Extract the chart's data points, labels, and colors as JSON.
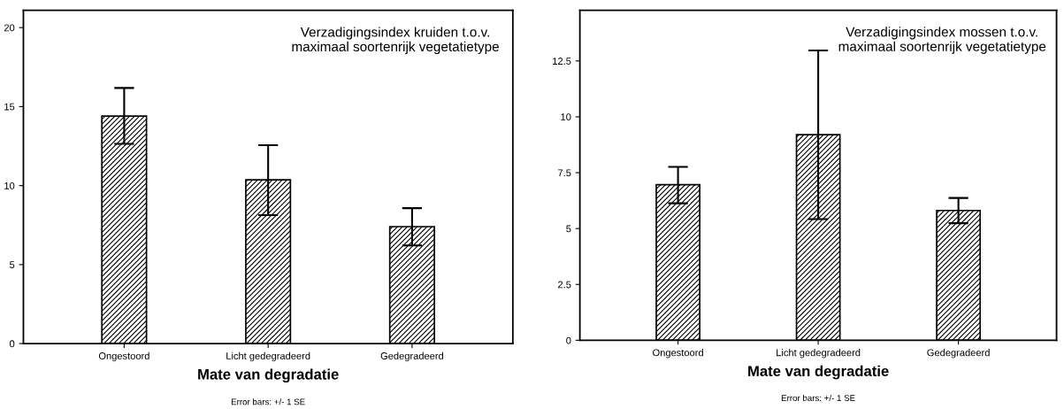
{
  "chart_data": [
    {
      "type": "bar",
      "title": "Verzadigingsindex kruiden t.o.v.\nmaximaal soortenrijk vegetatietype",
      "xlabel": "Mate van degradatie",
      "annotations": [
        "Error bars: +/- 1 SE"
      ],
      "categories": [
        "Ongestoord",
        "Licht gedegradeerd",
        "Gedegradeerd"
      ],
      "values": [
        14.4,
        10.36,
        7.4
      ],
      "color": "#000000",
      "errors": [
        [
          12.64,
          16.18
        ],
        [
          8.13,
          12.56
        ],
        [
          6.21,
          8.57
        ]
      ],
      "ylim": [
        0,
        21.1
      ],
      "yticks": [
        0,
        5,
        10,
        15,
        20
      ]
    },
    {
      "type": "bar",
      "title": "Verzadigingsindex mossen t.o.v.\nmaximaal soortenrijk vegetatietype",
      "xlabel": "Mate van degradatie",
      "annotations": [
        "Error bars: +/- 1 SE"
      ],
      "categories": [
        "Ongestoord",
        "Licht gedegradeerd",
        "Gedegradeerd"
      ],
      "values": [
        6.96,
        9.2,
        5.81
      ],
      "color": "#000000",
      "errors": [
        [
          6.13,
          7.76
        ],
        [
          5.42,
          12.97
        ],
        [
          5.24,
          6.37
        ]
      ],
      "ylim": [
        0,
        14.77
      ],
      "yticks": [
        0,
        2.5,
        5,
        7.5,
        10,
        12.5
      ]
    }
  ]
}
